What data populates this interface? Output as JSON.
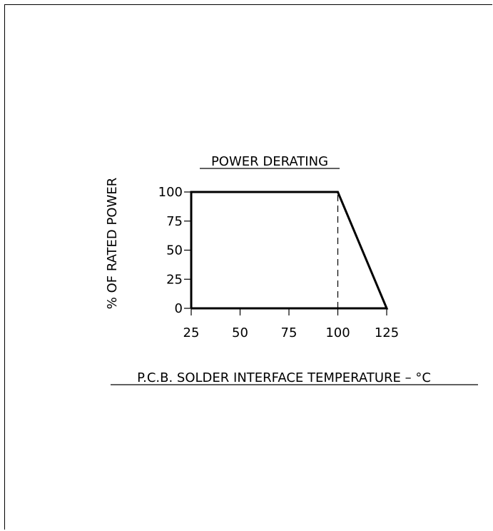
{
  "chart_data": {
    "type": "line",
    "title": "POWER DERATING",
    "xlabel": "P.C.B. SOLDER INTERFACE TEMPERATURE – °C",
    "ylabel": "% OF RATED POWER",
    "x_ticks": [
      25,
      50,
      75,
      100,
      125
    ],
    "y_ticks": [
      0,
      25,
      50,
      75,
      100
    ],
    "x_tick_labels": [
      "25",
      "50",
      "75",
      "100",
      "125"
    ],
    "y_tick_labels": [
      "0",
      "25",
      "50",
      "75",
      "100"
    ],
    "xlim": [
      25,
      125
    ],
    "ylim": [
      0,
      100
    ],
    "grid": false,
    "series": [
      {
        "x": [
          25,
          25,
          100,
          125,
          25
        ],
        "y": [
          0,
          100,
          100,
          0,
          0
        ]
      }
    ],
    "reference_lines": [
      {
        "orientation": "vertical",
        "x": 100,
        "y_range": [
          0,
          100
        ],
        "style": "dashed"
      }
    ]
  }
}
